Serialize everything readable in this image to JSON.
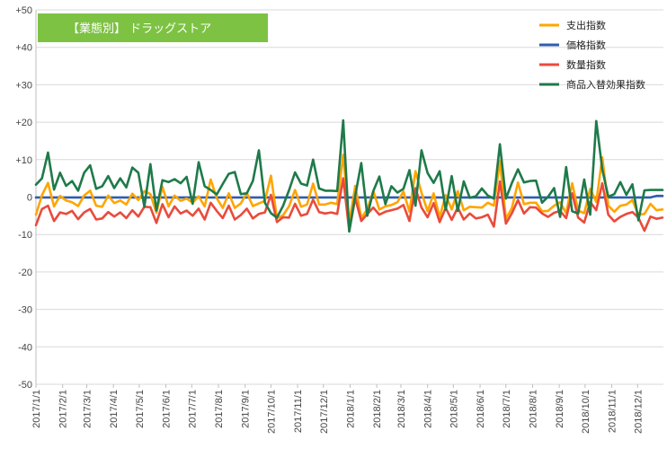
{
  "chart_data": {
    "type": "line",
    "title": "【業態別】 ドラッグストア",
    "title_bg": "#7dc242",
    "ylim": [
      -50,
      50
    ],
    "y_ticks": [
      "+50",
      "+40",
      "+30",
      "+20",
      "+10",
      "0",
      "-10",
      "-20",
      "-30",
      "-40",
      "-50"
    ],
    "y_tick_values": [
      50,
      40,
      30,
      20,
      10,
      0,
      -10,
      -20,
      -30,
      -40,
      -50
    ],
    "grid": true,
    "legend_position": "top-right",
    "x_range": [
      "2017-01-01",
      "2018-12-31"
    ],
    "x_ticks": [
      "2017/1/1",
      "2017/2/1",
      "2017/3/1",
      "2017/4/1",
      "2017/5/1",
      "2017/6/1",
      "2017/7/1",
      "2017/8/1",
      "2017/9/1",
      "2017/10/1",
      "2017/11/1",
      "2017/12/1",
      "2018/1/1",
      "2018/2/1",
      "2018/3/1",
      "2018/4/1",
      "2018/5/1",
      "2018/6/1",
      "2018/7/1",
      "2018/8/1",
      "2018/9/1",
      "2018/10/1",
      "2018/11/1",
      "2018/12/1"
    ],
    "x": [
      "2017-01-01",
      "2017-01-08",
      "2017-01-15",
      "2017-01-22",
      "2017-01-29",
      "2017-02-05",
      "2017-02-12",
      "2017-02-19",
      "2017-02-26",
      "2017-03-05",
      "2017-03-12",
      "2017-03-19",
      "2017-03-26",
      "2017-04-02",
      "2017-04-09",
      "2017-04-16",
      "2017-04-23",
      "2017-04-30",
      "2017-05-07",
      "2017-05-14",
      "2017-05-21",
      "2017-05-28",
      "2017-06-04",
      "2017-06-11",
      "2017-06-18",
      "2017-06-25",
      "2017-07-02",
      "2017-07-09",
      "2017-07-16",
      "2017-07-23",
      "2017-07-30",
      "2017-08-06",
      "2017-08-13",
      "2017-08-20",
      "2017-08-27",
      "2017-09-03",
      "2017-09-10",
      "2017-09-17",
      "2017-09-24",
      "2017-10-01",
      "2017-10-08",
      "2017-10-15",
      "2017-10-22",
      "2017-10-29",
      "2017-11-05",
      "2017-11-12",
      "2017-11-19",
      "2017-11-26",
      "2017-12-03",
      "2017-12-10",
      "2017-12-17",
      "2017-12-24",
      "2017-12-31",
      "2018-01-07",
      "2018-01-14",
      "2018-01-21",
      "2018-01-28",
      "2018-02-04",
      "2018-02-11",
      "2018-02-18",
      "2018-02-25",
      "2018-03-04",
      "2018-03-11",
      "2018-03-18",
      "2018-03-25",
      "2018-04-01",
      "2018-04-08",
      "2018-04-15",
      "2018-04-22",
      "2018-04-29",
      "2018-05-06",
      "2018-05-13",
      "2018-05-20",
      "2018-05-27",
      "2018-06-03",
      "2018-06-10",
      "2018-06-17",
      "2018-06-24",
      "2018-07-01",
      "2018-07-08",
      "2018-07-15",
      "2018-07-22",
      "2018-07-29",
      "2018-08-05",
      "2018-08-12",
      "2018-08-19",
      "2018-08-26",
      "2018-09-02",
      "2018-09-09",
      "2018-09-16",
      "2018-09-23",
      "2018-09-30",
      "2018-10-07",
      "2018-10-14",
      "2018-10-21",
      "2018-10-28",
      "2018-11-04",
      "2018-11-11",
      "2018-11-18",
      "2018-11-25",
      "2018-12-02",
      "2018-12-09",
      "2018-12-16",
      "2018-12-23",
      "2018-12-30"
    ],
    "series": [
      {
        "name": "支出指数",
        "color": "#ffa500",
        "values": [
          -4.7,
          0.5,
          3.8,
          -2.5,
          0.3,
          -0.9,
          -1.4,
          -2.4,
          0.4,
          1.7,
          -2.3,
          -2.6,
          0.4,
          -1.6,
          -0.9,
          -2.0,
          0.9,
          -0.8,
          1.6,
          0.8,
          -4.2,
          2.7,
          -2.5,
          0.4,
          -1.0,
          -0.4,
          -1.5,
          0.2,
          -2.5,
          4.7,
          -0.3,
          -2.9,
          1.0,
          -2.9,
          -1.7,
          1.1,
          -2.4,
          -1.7,
          -1.0,
          5.7,
          -5.6,
          -4.9,
          -2.5,
          1.9,
          -2.6,
          -2.0,
          3.6,
          -2.0,
          -2.0,
          -1.5,
          -1.9,
          11.3,
          -6.8,
          3.0,
          -5.6,
          -3.3,
          1.6,
          -3.3,
          -2.5,
          -2.1,
          -1.4,
          1.5,
          -3.9,
          6.9,
          1.2,
          -3.8,
          1.0,
          -5.4,
          0.5,
          -3.3,
          1.6,
          -3.5,
          -2.6,
          -2.7,
          -2.8,
          -1.5,
          -2.3,
          9.6,
          -5.8,
          -2.9,
          3.9,
          -1.9,
          -1.5,
          -1.5,
          -3.8,
          -3.7,
          -2.3,
          -1.4,
          -4.3,
          3.7,
          -3.6,
          -4.3,
          2.2,
          -1.3,
          10.6,
          -2.3,
          -3.9,
          -2.3,
          -2.0,
          -0.8,
          -4.7,
          -4.5,
          -1.8,
          -3.5,
          -3.3
        ]
      },
      {
        "name": "価格指数",
        "color": "#2f5dae",
        "values": [
          -0.1,
          -0.1,
          -0.1,
          -0.1,
          -0.1,
          -0.1,
          -0.1,
          -0.1,
          -0.1,
          -0.1,
          -0.1,
          -0.1,
          -0.1,
          -0.1,
          -0.1,
          -0.1,
          -0.1,
          -0.1,
          -0.1,
          -0.1,
          -0.1,
          -0.1,
          -0.1,
          -0.1,
          -0.1,
          -0.1,
          -0.1,
          -0.1,
          -0.1,
          -0.1,
          -0.1,
          -0.1,
          -0.1,
          -0.1,
          -0.1,
          -0.1,
          -0.1,
          -0.1,
          -0.1,
          -0.1,
          -0.1,
          -0.1,
          -0.1,
          -0.1,
          -0.1,
          -0.1,
          -0.1,
          -0.1,
          -0.1,
          -0.1,
          -0.1,
          -0.1,
          -0.1,
          -0.1,
          -0.1,
          -0.1,
          -0.1,
          -0.1,
          -0.1,
          -0.1,
          -0.1,
          -0.1,
          -0.1,
          -0.1,
          -0.1,
          -0.1,
          -0.1,
          -0.1,
          -0.1,
          -0.1,
          -0.1,
          -0.1,
          -0.1,
          -0.1,
          -0.1,
          -0.1,
          -0.1,
          -0.1,
          -0.1,
          -0.1,
          -0.1,
          -0.1,
          -0.1,
          -0.1,
          -0.1,
          -0.1,
          -0.1,
          -0.1,
          -0.1,
          -0.1,
          -0.1,
          -0.1,
          -0.1,
          -0.1,
          -0.1,
          -0.1,
          -0.1,
          -0.1,
          -0.1,
          -0.1,
          -0.1,
          -0.1,
          -0.1,
          0.3,
          0.3
        ]
      },
      {
        "name": "数量指数",
        "color": "#e94b3c",
        "values": [
          -7.5,
          -3.2,
          -2.3,
          -6.4,
          -4.1,
          -4.5,
          -3.7,
          -5.9,
          -4.1,
          -3.2,
          -6.0,
          -5.7,
          -4.0,
          -5.2,
          -4.1,
          -5.6,
          -3.5,
          -5.2,
          -2.6,
          -2.7,
          -6.9,
          -1.9,
          -5.4,
          -2.5,
          -4.4,
          -3.6,
          -5.0,
          -3.1,
          -6.0,
          -1.5,
          -3.7,
          -5.6,
          -2.3,
          -6.0,
          -4.8,
          -3.1,
          -5.7,
          -4.5,
          -4.1,
          0.6,
          -6.7,
          -5.4,
          -5.5,
          -1.8,
          -5.0,
          -4.5,
          -0.7,
          -4.0,
          -4.4,
          -4.1,
          -4.5,
          5.0,
          -9.0,
          -0.3,
          -6.4,
          -4.5,
          -2.8,
          -4.7,
          -3.9,
          -3.5,
          -3.1,
          -2.1,
          -6.4,
          2.4,
          -2.8,
          -5.4,
          -1.6,
          -6.7,
          -2.9,
          -6.1,
          -2.8,
          -6.0,
          -4.4,
          -5.7,
          -5.4,
          -4.7,
          -7.9,
          4.2,
          -7.1,
          -4.3,
          -0.8,
          -4.4,
          -2.7,
          -2.8,
          -4.4,
          -5.3,
          -4.2,
          -3.7,
          -5.6,
          1.0,
          -5.5,
          -6.8,
          -1.3,
          -3.5,
          3.7,
          -4.7,
          -6.5,
          -5.3,
          -4.5,
          -4.0,
          -5.5,
          -9.0,
          -5.2,
          -5.8,
          -5.5
        ]
      },
      {
        "name": "商品入替効果指数",
        "color": "#1f7a4a",
        "values": [
          3.3,
          5.0,
          11.9,
          2.0,
          6.5,
          3.0,
          4.3,
          1.7,
          6.5,
          8.5,
          2.2,
          2.9,
          5.6,
          2.4,
          5.0,
          2.6,
          7.9,
          6.5,
          -2.6,
          8.8,
          -3.6,
          4.5,
          4.0,
          4.8,
          3.7,
          5.4,
          -1.8,
          9.3,
          2.9,
          1.9,
          0.7,
          3.5,
          6.2,
          6.7,
          0.8,
          1.0,
          4.3,
          12.5,
          -1.5,
          -4.3,
          -5.5,
          -2.4,
          1.8,
          6.6,
          3.6,
          3.1,
          10.0,
          2.3,
          1.7,
          1.7,
          1.6,
          20.5,
          -9.2,
          0.4,
          9.1,
          -5.0,
          1.6,
          5.5,
          -1.9,
          2.9,
          1.2,
          2.2,
          7.2,
          -2.3,
          12.5,
          6.4,
          3.8,
          6.9,
          -3.4,
          5.6,
          -3.7,
          4.2,
          -0.2,
          0.2,
          2.3,
          0.4,
          -0.4,
          14.1,
          -0.4,
          3.8,
          7.4,
          3.9,
          4.3,
          4.4,
          -1.5,
          0.1,
          2.4,
          -5.3,
          8.0,
          -3.8,
          -4.4,
          4.7,
          -4.7,
          20.3,
          7.4,
          0.1,
          0.8,
          4.0,
          0.6,
          3.4,
          -6.2,
          1.8,
          1.9,
          1.9,
          1.9
        ]
      }
    ]
  }
}
